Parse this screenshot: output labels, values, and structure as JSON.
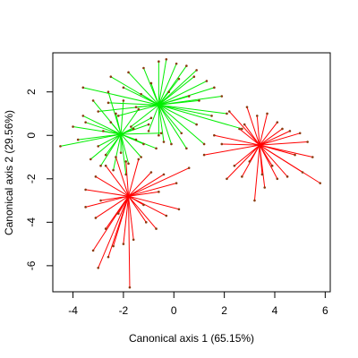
{
  "chart_data": {
    "type": "scatter",
    "subtype": "canonical-discriminant spider plot",
    "xlabel": "Canonical axis 1 (65.15%)",
    "ylabel": "Canonical axis 2 (29.56%)",
    "xlim": [
      -4.8,
      6.2
    ],
    "ylim": [
      -7.2,
      3.8
    ],
    "x_ticks": [
      -4,
      -2,
      0,
      2,
      4,
      6
    ],
    "y_ticks": [
      -6,
      -4,
      -2,
      0,
      2
    ],
    "grid": false,
    "colors": {
      "green_group": "#00ee00",
      "red_group": "#ff0000",
      "point": "#8b3a0f"
    },
    "series": [
      {
        "color": "#00ee00",
        "centroid": [
          -0.6,
          1.4
        ],
        "points": [
          [
            -3.6,
            2.2
          ],
          [
            -2.5,
            2.7
          ],
          [
            -1.8,
            2.9
          ],
          [
            -1.2,
            3.1
          ],
          [
            -0.6,
            3.4
          ],
          [
            -0.3,
            3.5
          ],
          [
            0.1,
            3.3
          ],
          [
            0.5,
            3.2
          ],
          [
            0.9,
            3.0
          ],
          [
            1.3,
            2.5
          ],
          [
            1.6,
            2.2
          ],
          [
            1.9,
            1.8
          ],
          [
            -2.6,
            1.5
          ],
          [
            -3.0,
            1.1
          ],
          [
            -2.2,
            0.9
          ],
          [
            -1.7,
            0.4
          ],
          [
            -1.0,
            0.2
          ],
          [
            -0.6,
            0.0
          ],
          [
            0.3,
            0.1
          ],
          [
            0.9,
            0.5
          ],
          [
            1.5,
            0.9
          ],
          [
            2.1,
            1.0
          ],
          [
            2.7,
            0.3
          ],
          [
            1.2,
            -0.4
          ],
          [
            0.5,
            -0.6
          ],
          [
            -0.1,
            -0.4
          ],
          [
            -0.4,
            -0.3
          ],
          [
            -1.3,
            1.9
          ],
          [
            -0.9,
            2.4
          ],
          [
            0.2,
            2.6
          ],
          [
            -0.2,
            2.0
          ],
          [
            0.6,
            1.8
          ],
          [
            -1.5,
            1.3
          ],
          [
            1.0,
            1.6
          ],
          [
            -2.0,
            2.2
          ],
          [
            0.8,
            2.7
          ]
        ]
      },
      {
        "color": "#00ee00",
        "centroid": [
          -2.1,
          0.05
        ],
        "points": [
          [
            -4.5,
            -0.5
          ],
          [
            -4.0,
            0.4
          ],
          [
            -3.6,
            0.9
          ],
          [
            -3.2,
            1.6
          ],
          [
            -2.6,
            2.0
          ],
          [
            -2.0,
            1.6
          ],
          [
            -1.4,
            1.2
          ],
          [
            -0.9,
            0.8
          ],
          [
            -0.5,
            0.1
          ],
          [
            -0.7,
            -0.6
          ],
          [
            -1.3,
            -1.0
          ],
          [
            -1.8,
            -1.3
          ],
          [
            -2.4,
            -1.6
          ],
          [
            -2.9,
            -1.4
          ],
          [
            -3.3,
            -1.1
          ],
          [
            -3.0,
            -0.5
          ],
          [
            -2.5,
            0.6
          ],
          [
            -1.6,
            0.3
          ],
          [
            -2.8,
            0.2
          ],
          [
            -1.2,
            -0.4
          ],
          [
            -2.1,
            -0.8
          ],
          [
            -3.8,
            -0.2
          ],
          [
            -2.3,
            1.0
          ],
          [
            -1.0,
            0.5
          ],
          [
            -3.5,
            0.6
          ],
          [
            -1.9,
            -1.8
          ],
          [
            -2.7,
            -0.9
          ],
          [
            -1.5,
            -0.2
          ]
        ]
      },
      {
        "color": "#ff0000",
        "centroid": [
          3.4,
          -0.45
        ],
        "points": [
          [
            2.2,
            1.1
          ],
          [
            2.6,
            0.3
          ],
          [
            2.9,
            1.3
          ],
          [
            3.3,
            0.9
          ],
          [
            3.7,
            1.0
          ],
          [
            4.1,
            0.6
          ],
          [
            4.6,
            0.2
          ],
          [
            5.0,
            0.1
          ],
          [
            5.3,
            -0.3
          ],
          [
            5.8,
            -2.2
          ],
          [
            5.1,
            -1.7
          ],
          [
            4.5,
            -1.9
          ],
          [
            4.1,
            -2.0
          ],
          [
            3.6,
            -2.4
          ],
          [
            3.2,
            -3.0
          ],
          [
            2.7,
            -1.9
          ],
          [
            2.4,
            -1.4
          ],
          [
            1.6,
            0.0
          ],
          [
            1.2,
            -0.9
          ],
          [
            1.9,
            -0.4
          ],
          [
            4.8,
            -0.9
          ],
          [
            3.0,
            -1.2
          ],
          [
            3.9,
            -1.4
          ],
          [
            4.3,
            0.3
          ],
          [
            2.8,
            0.5
          ],
          [
            3.5,
            -1.8
          ],
          [
            5.5,
            -1.0
          ],
          [
            2.1,
            -2.0
          ]
        ]
      },
      {
        "color": "#ff0000",
        "centroid": [
          -1.8,
          -2.8
        ],
        "points": [
          [
            -3.5,
            -2.5
          ],
          [
            -3.1,
            -1.9
          ],
          [
            -2.7,
            -1.4
          ],
          [
            -2.3,
            -1.0
          ],
          [
            -1.9,
            -1.2
          ],
          [
            -1.4,
            -1.1
          ],
          [
            -0.9,
            -1.7
          ],
          [
            -0.4,
            -1.8
          ],
          [
            0.1,
            -2.2
          ],
          [
            0.6,
            -1.5
          ],
          [
            0.2,
            -3.4
          ],
          [
            -0.3,
            -3.7
          ],
          [
            -0.7,
            -4.3
          ],
          [
            -1.1,
            -4.0
          ],
          [
            -1.6,
            -4.8
          ],
          [
            -1.75,
            -7.0
          ],
          [
            -2.0,
            -5.0
          ],
          [
            -2.4,
            -5.1
          ],
          [
            -2.7,
            -4.3
          ],
          [
            -3.1,
            -3.8
          ],
          [
            -3.5,
            -3.3
          ],
          [
            -3.2,
            -5.3
          ],
          [
            -2.6,
            -5.6
          ],
          [
            -3.0,
            -6.1
          ],
          [
            -1.2,
            -3.2
          ],
          [
            -2.2,
            -3.6
          ],
          [
            -0.6,
            -2.6
          ],
          [
            -2.9,
            -3.0
          ]
        ]
      }
    ]
  }
}
